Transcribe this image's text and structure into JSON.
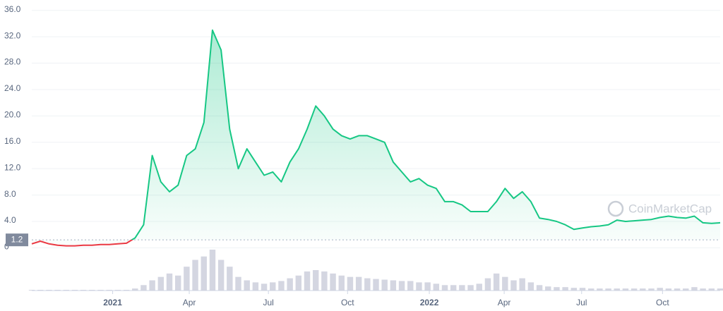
{
  "chart_data": {
    "type": "line",
    "watermark": "CoinMarketCap",
    "color_up": "#16c784",
    "color_down": "#ea3943",
    "baseline": 1.2,
    "xlim": [
      0,
      80
    ],
    "xticks": [
      {
        "value": 9.4,
        "label": "2021"
      },
      {
        "value": 18.3,
        "label": "Apr"
      },
      {
        "value": 27.5,
        "label": "Jul"
      },
      {
        "value": 36.7,
        "label": "Oct"
      },
      {
        "value": 46.2,
        "label": "2022"
      },
      {
        "value": 54.9,
        "label": "Apr"
      },
      {
        "value": 63.9,
        "label": "Jul"
      },
      {
        "value": 73.3,
        "label": "Oct"
      }
    ],
    "ylim": [
      0,
      37
    ],
    "yticks": [
      0,
      {
        "value": 4,
        "label": "4.0"
      },
      {
        "value": 8,
        "label": "8.0"
      },
      {
        "value": 12,
        "label": "12.0"
      },
      {
        "value": 16,
        "label": "16.0"
      },
      {
        "value": 20,
        "label": "20.0"
      },
      {
        "value": 24,
        "label": "24.0"
      },
      {
        "value": 28,
        "label": "28.0"
      },
      {
        "value": 32,
        "label": "32.0"
      },
      {
        "value": 36,
        "label": "36.0"
      }
    ],
    "grid": true,
    "values": [
      0.6,
      1.0,
      0.6,
      0.4,
      0.3,
      0.3,
      0.4,
      0.4,
      0.5,
      0.5,
      0.6,
      0.7,
      1.5,
      3.5,
      14,
      10,
      8.5,
      9.5,
      14,
      15,
      19,
      33,
      30,
      18,
      12,
      15,
      13,
      11,
      11.5,
      10,
      13,
      15,
      18,
      21.5,
      20,
      18,
      17,
      16.5,
      17,
      17,
      16.5,
      16,
      13,
      11.5,
      10,
      10.5,
      9.5,
      9,
      7,
      7,
      6.5,
      5.5,
      5.5,
      5.5,
      7,
      9,
      7.5,
      8.5,
      7,
      4.5,
      4.3,
      4,
      3.5,
      2.8,
      3,
      3.2,
      3.3,
      3.5,
      4.2,
      4.0,
      4.1,
      4.2,
      4.3,
      4.6,
      4.8,
      4.6,
      4.5,
      4.8,
      3.8,
      3.7,
      3.8
    ],
    "volume": [
      1,
      1,
      1,
      1,
      1,
      1,
      1,
      1,
      1,
      1,
      1,
      1,
      3,
      8,
      15,
      20,
      25,
      22,
      35,
      45,
      50,
      60,
      45,
      35,
      20,
      15,
      12,
      10,
      12,
      14,
      18,
      22,
      28,
      30,
      28,
      25,
      22,
      20,
      20,
      18,
      17,
      16,
      15,
      14,
      14,
      12,
      12,
      10,
      8,
      8,
      8,
      8,
      10,
      18,
      25,
      20,
      15,
      18,
      12,
      8,
      6,
      5,
      5,
      4,
      4,
      3,
      3,
      3,
      3,
      3,
      3,
      3,
      3,
      4,
      3,
      3,
      3,
      5,
      3,
      3,
      3
    ]
  }
}
